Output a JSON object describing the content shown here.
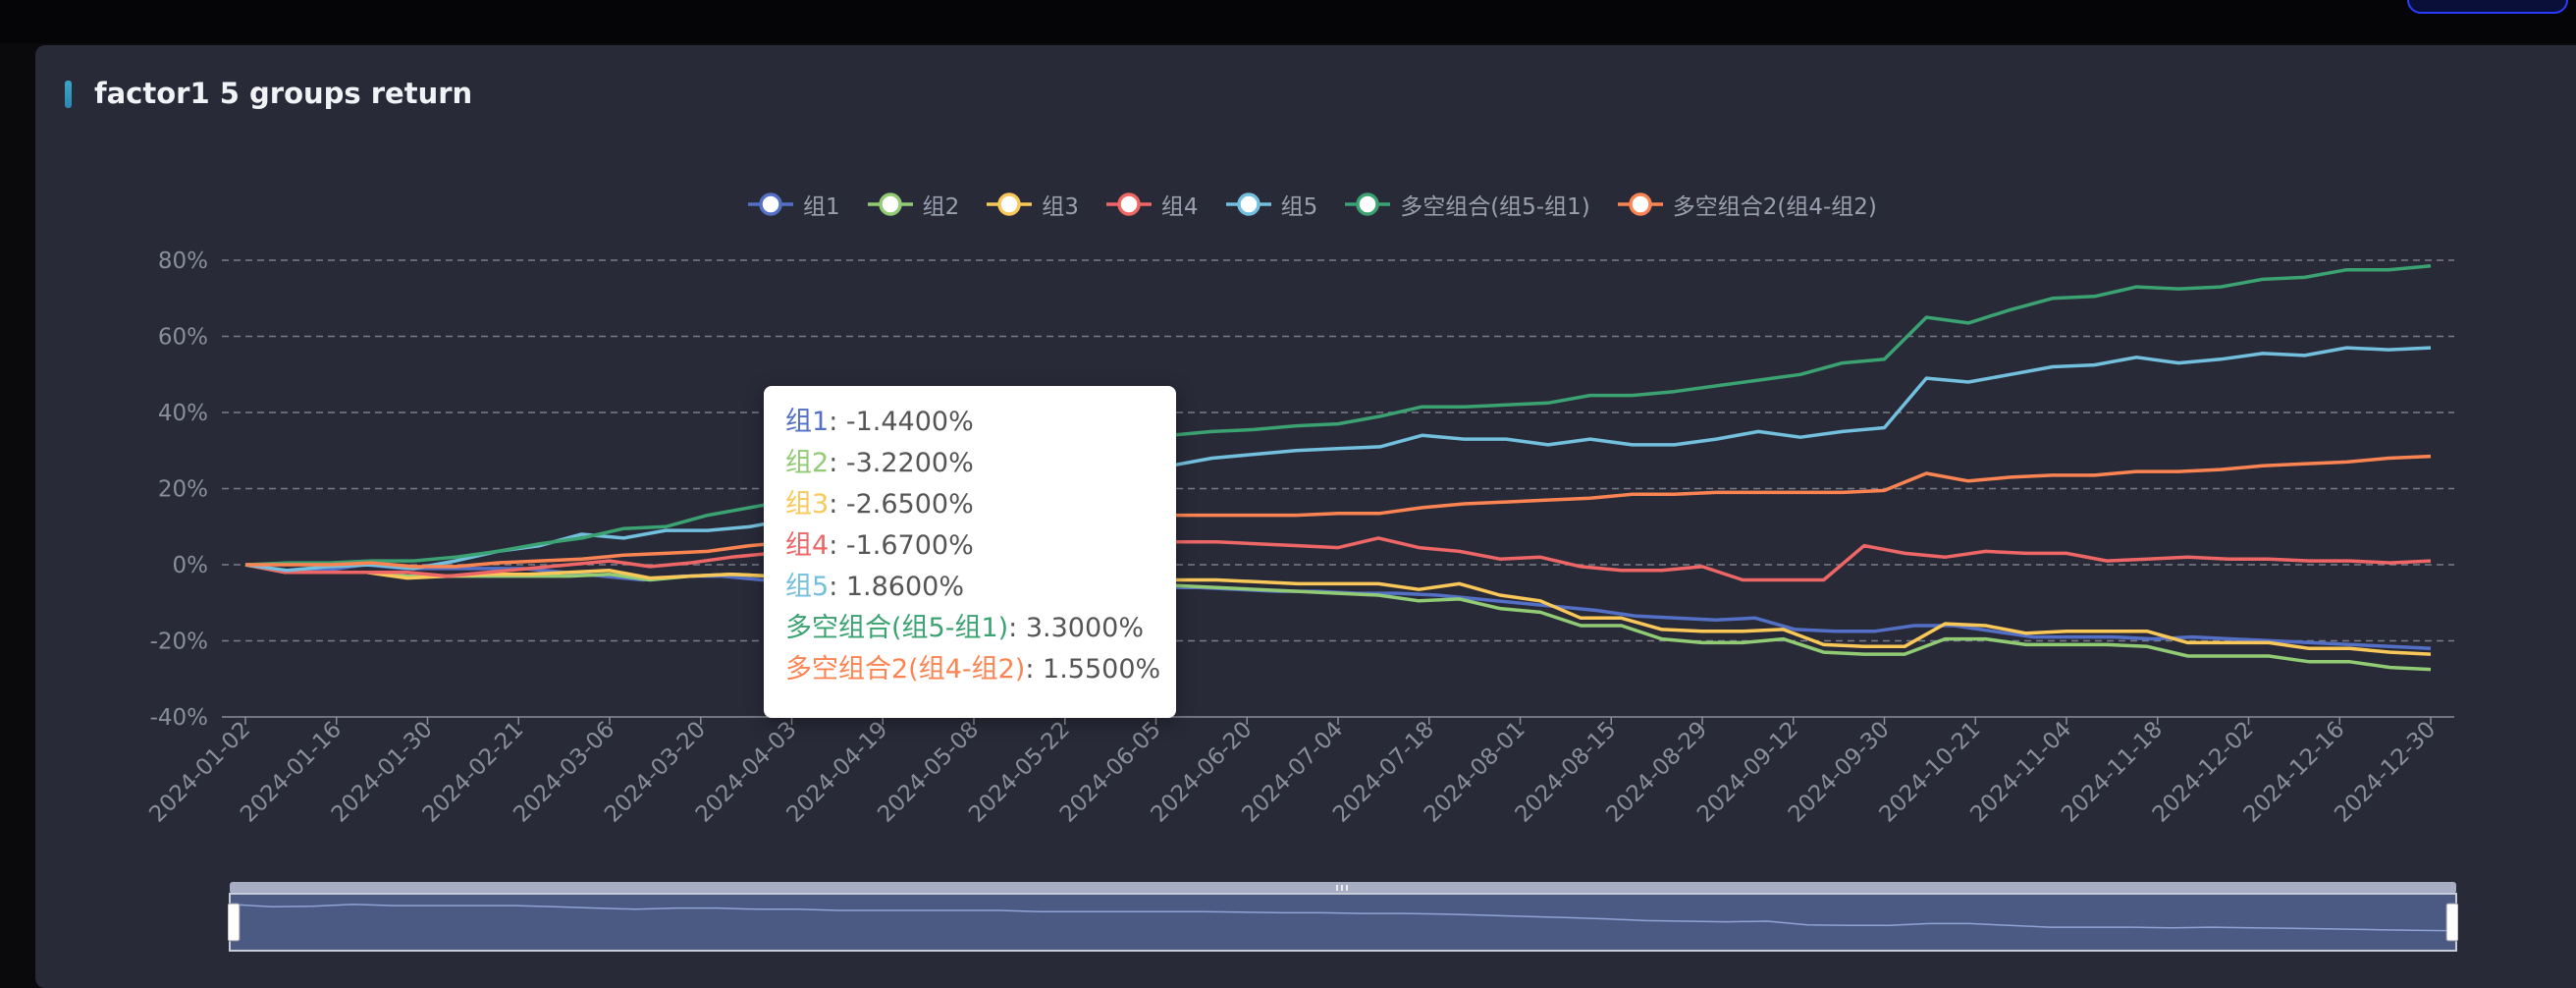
{
  "title": "factor1 5 groups return",
  "colors": {
    "background": "#282a38",
    "grid": "#7a7d88",
    "axis_text": "#8a8e99"
  },
  "chart_data": {
    "type": "line",
    "title": "factor1 5 groups return",
    "ylim": [
      -40,
      80
    ],
    "yticks": [
      "80%",
      "60%",
      "40%",
      "20%",
      "0%",
      "-20%",
      "-40%"
    ],
    "ytick_values": [
      80,
      60,
      40,
      20,
      0,
      -20,
      -40
    ],
    "xtick_labels": [
      "2024-01-02",
      "2024-01-16",
      "2024-01-30",
      "2024-02-21",
      "2024-03-06",
      "2024-03-20",
      "2024-04-03",
      "2024-04-19",
      "2024-05-08",
      "2024-05-22",
      "2024-06-05",
      "2024-06-20",
      "2024-07-04",
      "2024-07-18",
      "2024-08-01",
      "2024-08-15",
      "2024-08-29",
      "2024-09-12",
      "2024-09-30",
      "2024-10-21",
      "2024-11-04",
      "2024-11-18",
      "2024-12-02",
      "2024-12-16",
      "2024-12-30"
    ],
    "grid": true,
    "legend_position": "top",
    "series": [
      {
        "name": "组1",
        "color": "#5470c6",
        "values": [
          0,
          -2,
          -1.5,
          0,
          -1,
          -1,
          -1,
          -1,
          -2,
          -3,
          -4,
          -3,
          -3,
          -4,
          -4,
          -5,
          -5,
          -5,
          -5,
          -5,
          -6,
          -6,
          -6,
          -6,
          -6,
          -6.5,
          -7,
          -7,
          -7.5,
          -7.5,
          -8,
          -9,
          -10,
          -11,
          -12,
          -13.5,
          -14,
          -14.5,
          -14,
          -17,
          -17.5,
          -17.5,
          -16,
          -16,
          -17.5,
          -19,
          -19,
          -19,
          -19.5,
          -19,
          -19.5,
          -20,
          -20.5,
          -21,
          -21.5,
          -22
        ]
      },
      {
        "name": "组2",
        "color": "#91cc75",
        "values": [
          0,
          -2,
          -2,
          -2,
          -3,
          -3,
          -3,
          -3,
          -3,
          -2.5,
          -4,
          -3,
          -2.5,
          -3,
          -4,
          -4,
          -4,
          -4,
          -4,
          -4,
          -4.5,
          -5,
          -5,
          -5.5,
          -6,
          -6.5,
          -7,
          -7.5,
          -8,
          -9.5,
          -9,
          -11.5,
          -12.5,
          -16,
          -16,
          -19.5,
          -20.5,
          -20.5,
          -19.5,
          -23,
          -23.5,
          -23.5,
          -19.5,
          -19.5,
          -21,
          -21,
          -21,
          -21.5,
          -24,
          -24,
          -24,
          -25.5,
          -25.5,
          -27,
          -27.5
        ]
      },
      {
        "name": "组3",
        "color": "#fac858",
        "values": [
          0,
          -2,
          -2,
          -2,
          -3.5,
          -3,
          -2.5,
          -2.5,
          -2,
          -1.5,
          -3.5,
          -3,
          -2.5,
          -3,
          -3,
          -3,
          -3,
          -3,
          -3,
          -3,
          -3,
          -3.5,
          -4,
          -4,
          -4,
          -4.5,
          -5,
          -5,
          -5,
          -6.5,
          -5,
          -8,
          -9.5,
          -14,
          -14,
          -17,
          -17.5,
          -17.5,
          -17,
          -21,
          -21.5,
          -21.5,
          -15.5,
          -16,
          -18,
          -17.5,
          -17.5,
          -17.5,
          -20.5,
          -20.5,
          -20.5,
          -22,
          -22,
          -23,
          -23.5
        ]
      },
      {
        "name": "组4",
        "color": "#ee6666",
        "values": [
          0,
          -2,
          -2,
          -2,
          -2,
          -3,
          -2,
          -1,
          0,
          1,
          -0.5,
          0.5,
          2,
          3,
          4,
          4,
          4,
          5,
          5,
          5.5,
          5.5,
          6,
          6,
          6,
          6,
          5.5,
          5,
          4.5,
          7,
          4.5,
          3.5,
          1.5,
          2,
          -0.5,
          -1.5,
          -1.5,
          -0.5,
          -4,
          -4,
          -4,
          5,
          3,
          2,
          3.5,
          3,
          3,
          1,
          1.5,
          2,
          1.5,
          1.5,
          1,
          1,
          0.5,
          1
        ]
      },
      {
        "name": "组5",
        "color": "#73c0de",
        "values": [
          0,
          -1.5,
          -0.5,
          0,
          -1,
          1,
          3.5,
          5,
          8,
          7,
          9,
          9,
          10,
          12,
          14,
          16,
          18,
          20,
          21,
          22,
          23,
          24,
          26,
          28,
          29,
          30,
          30.5,
          31,
          34,
          33,
          33,
          31.5,
          33,
          31.5,
          31.5,
          33,
          35,
          33.5,
          35,
          36,
          49,
          48,
          50,
          52,
          52.5,
          54.5,
          53,
          54,
          55.5,
          55,
          57,
          56.5,
          57
        ]
      },
      {
        "name": "多空组合(组5-组1)",
        "color": "#3ba272",
        "values": [
          0,
          0.5,
          0.5,
          1,
          1,
          2,
          3.5,
          5.5,
          7,
          9.5,
          10,
          13,
          15,
          17,
          19,
          21,
          23,
          25,
          27,
          29,
          31,
          33,
          34,
          35,
          35.5,
          36.5,
          37,
          39,
          41.5,
          41.5,
          42,
          42.5,
          44.5,
          44.5,
          45.5,
          47,
          48.5,
          50,
          53,
          54,
          65,
          63.5,
          67,
          70,
          70.5,
          73,
          72.5,
          73,
          75,
          75.5,
          77.5,
          77.5,
          78.5
        ]
      },
      {
        "name": "多空组合2(组4-组2)",
        "color": "#fc8452",
        "values": [
          0,
          0,
          0,
          0.5,
          -0.5,
          -0.5,
          0.5,
          1,
          1.5,
          2.5,
          3,
          3.5,
          5,
          6,
          7,
          8,
          9,
          10,
          11,
          11.5,
          12,
          12.5,
          13,
          13,
          13,
          13,
          13.5,
          13.5,
          15,
          16,
          16.5,
          17,
          17.5,
          18.5,
          18.5,
          19,
          19,
          19,
          19,
          19.5,
          24,
          22,
          23,
          23.5,
          23.5,
          24.5,
          24.5,
          25,
          26,
          26.5,
          27,
          28,
          28.5
        ]
      }
    ]
  },
  "tooltip": {
    "rows": [
      {
        "name": "组1",
        "value": ": -1.4400%",
        "color": "#5470c6"
      },
      {
        "name": "组2",
        "value": ": -3.2200%",
        "color": "#91cc75"
      },
      {
        "name": "组3",
        "value": ": -2.6500%",
        "color": "#fac858"
      },
      {
        "name": "组4",
        "value": ": -1.6700%",
        "color": "#ee6666"
      },
      {
        "name": "组5",
        "value": ": 1.8600%",
        "color": "#73c0de"
      },
      {
        "name": "多空组合(组5-组1)",
        "value": ": 3.3000%",
        "color": "#3ba272"
      },
      {
        "name": "多空组合2(组4-组2)",
        "value": ": 1.5500%",
        "color": "#fc8452"
      }
    ]
  }
}
